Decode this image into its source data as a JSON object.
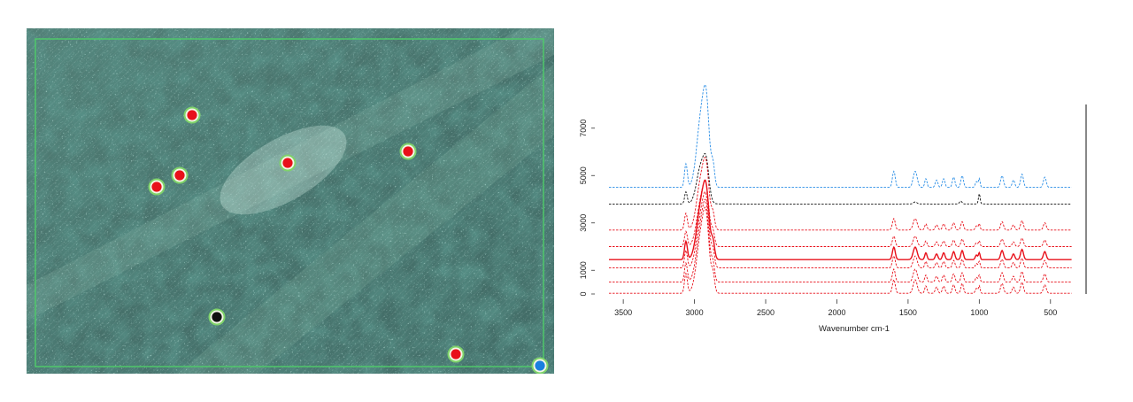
{
  "colors": {
    "sample_marker": "#e8101a",
    "reference_black": "#111111",
    "reference_blue": "#1a7fe0",
    "marker_ring": "#7fd36a",
    "selection_border": "#4fc86a"
  },
  "micrograph": {
    "markers": [
      {
        "color": "red"
      },
      {
        "color": "red"
      },
      {
        "color": "red"
      },
      {
        "color": "red"
      },
      {
        "color": "red"
      },
      {
        "color": "black"
      },
      {
        "color": "red"
      },
      {
        "color": "blue"
      }
    ]
  },
  "chart_data": {
    "type": "line",
    "xlabel": "Wavenumber cm-1",
    "x_reversed": true,
    "xlim": [
      3650,
      250
    ],
    "ylim": [
      0,
      8000
    ],
    "x_ticks": [
      3500,
      3000,
      2500,
      2000,
      1500,
      1000,
      500
    ],
    "y_ticks": [
      0,
      1000,
      3000,
      5000,
      7000
    ],
    "y_tick_labels": [
      "0",
      "1000",
      "3000",
      "5000",
      "7000"
    ],
    "series": [
      {
        "color": "#2a8ee6",
        "offset": 4500,
        "peak": 3100
      },
      {
        "color": "#111111",
        "offset": 3800,
        "peak": 1700
      },
      {
        "color": "#e8101a",
        "offset": 2700,
        "peak": 2200
      },
      {
        "color": "#e8101a",
        "offset": 2000,
        "peak": 2000
      },
      {
        "color": "#e8101a",
        "offset": 1450,
        "peak": 2400
      },
      {
        "color": "#e8101a",
        "offset": 1100,
        "peak": 2300
      },
      {
        "color": "#e8101a",
        "offset": 500,
        "peak": 2500
      },
      {
        "color": "#e8101a",
        "offset": 30,
        "peak": 2600
      }
    ]
  }
}
